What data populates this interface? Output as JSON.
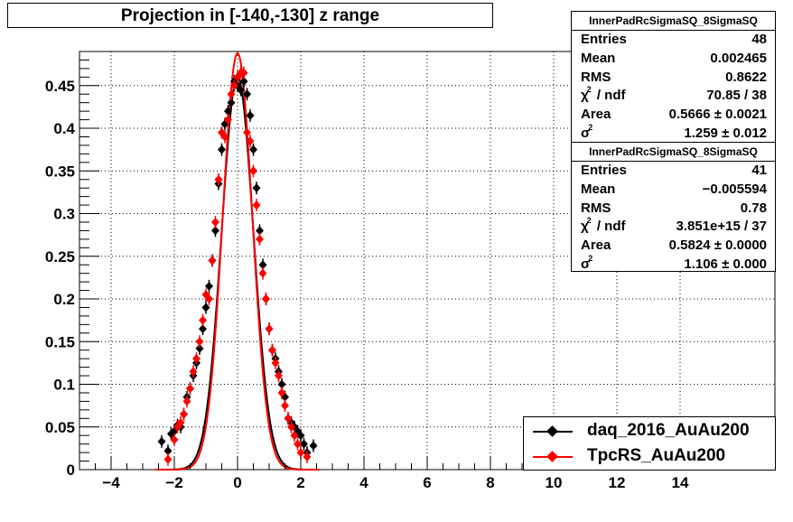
{
  "title": "Projection in [-140,-130] z range",
  "stats_boxes": [
    {
      "name": "InnerPadRcSigmaSQ_8SigmaSQ",
      "rows": [
        {
          "label": "Entries",
          "value": "48"
        },
        {
          "label": "Mean",
          "value": "0.002465"
        },
        {
          "label": "RMS",
          "value": "0.8622"
        },
        {
          "label": "χ / ndf",
          "sup": "2",
          "value": "70.85 / 38"
        },
        {
          "label": "Area",
          "value": "0.5666 ± 0.0021"
        },
        {
          "label": "σ",
          "sup": "2",
          "value": "1.259 ± 0.012"
        }
      ]
    },
    {
      "name": "InnerPadRcSigmaSQ_8SigmaSQ",
      "rows": [
        {
          "label": "Entries",
          "value": "41"
        },
        {
          "label": "Mean",
          "value": "−0.005594"
        },
        {
          "label": "RMS",
          "value": "0.78"
        },
        {
          "label": "χ / ndf",
          "sup": "2",
          "value": "3.851e+15 / 37"
        },
        {
          "label": "Area",
          "value": "0.5824 ± 0.0000"
        },
        {
          "label": "σ",
          "sup": "2",
          "value": "1.106 ± 0.000"
        }
      ]
    }
  ],
  "legend": [
    {
      "label": "daq_2016_AuAu200",
      "color": "#000000"
    },
    {
      "label": "TpcRS_AuAu200",
      "color": "#ff0000"
    }
  ],
  "chart_data": {
    "type": "scatter",
    "title": "Projection in [-140,-130] z range",
    "xlim": [
      -5,
      17
    ],
    "ylim": [
      0,
      0.49
    ],
    "x_ticks": [
      -4,
      -2,
      0,
      2,
      4,
      6,
      8,
      10,
      12,
      14
    ],
    "x_tick_labels": [
      "−4",
      "−2",
      "0",
      "2",
      "4",
      "6",
      "8",
      "10",
      "12",
      "14"
    ],
    "y_ticks": [
      0,
      0.05,
      0.1,
      0.15,
      0.2,
      0.25,
      0.3,
      0.35,
      0.4,
      0.45
    ],
    "y_tick_labels": [
      "0",
      "0.05",
      "0.1",
      "0.15",
      "0.2",
      "0.25",
      "0.3",
      "0.35",
      "0.4",
      "0.45"
    ],
    "grid": true,
    "legend_position": "bottom-right",
    "series": [
      {
        "name": "daq_2016_AuAu200",
        "color": "#000000",
        "x": [
          -2.4,
          -2.2,
          -2.1,
          -2.0,
          -1.9,
          -1.8,
          -1.7,
          -1.6,
          -1.5,
          -1.4,
          -1.3,
          -1.2,
          -1.1,
          -1.0,
          -0.9,
          -0.8,
          -0.7,
          -0.6,
          -0.5,
          -0.4,
          -0.3,
          -0.2,
          -0.1,
          0.0,
          0.1,
          0.2,
          0.3,
          0.4,
          0.5,
          0.6,
          0.7,
          0.8,
          0.9,
          1.0,
          1.1,
          1.2,
          1.3,
          1.4,
          1.5,
          1.6,
          1.7,
          1.8,
          1.9,
          2.0,
          2.1,
          2.2,
          2.4
        ],
        "y": [
          0.033,
          0.022,
          0.042,
          0.045,
          0.052,
          0.05,
          0.065,
          0.085,
          0.095,
          0.11,
          0.125,
          0.142,
          0.165,
          0.19,
          0.215,
          0.245,
          0.28,
          0.335,
          0.375,
          0.405,
          0.42,
          0.43,
          0.455,
          0.45,
          0.445,
          0.455,
          0.44,
          0.415,
          0.375,
          0.33,
          0.28,
          0.24,
          0.2,
          0.165,
          0.14,
          0.13,
          0.115,
          0.1,
          0.085,
          0.06,
          0.055,
          0.05,
          0.045,
          0.04,
          0.03,
          0.02,
          0.028
        ],
        "fit": {
          "mean": 0.0,
          "sigma2": 1.259,
          "peak": 0.46
        }
      },
      {
        "name": "TpcRS_AuAu200",
        "color": "#ff0000",
        "x": [
          -2.2,
          -2.0,
          -1.9,
          -1.8,
          -1.7,
          -1.6,
          -1.5,
          -1.4,
          -1.3,
          -1.2,
          -1.1,
          -1.0,
          -0.9,
          -0.8,
          -0.7,
          -0.6,
          -0.5,
          -0.4,
          -0.3,
          -0.2,
          -0.1,
          0.0,
          0.1,
          0.2,
          0.3,
          0.4,
          0.5,
          0.6,
          0.7,
          0.8,
          0.9,
          1.0,
          1.1,
          1.2,
          1.3,
          1.4,
          1.5,
          1.6,
          1.7,
          1.8,
          1.9,
          2.0,
          2.2
        ],
        "y": [
          0.012,
          0.035,
          0.05,
          0.055,
          0.065,
          0.08,
          0.095,
          0.115,
          0.13,
          0.15,
          0.175,
          0.205,
          0.2,
          0.245,
          0.29,
          0.34,
          0.395,
          0.39,
          0.41,
          0.44,
          0.45,
          0.46,
          0.465,
          0.465,
          0.395,
          0.385,
          0.35,
          0.31,
          0.27,
          0.23,
          0.2,
          0.165,
          0.14,
          0.125,
          0.11,
          0.09,
          0.075,
          0.06,
          0.05,
          0.04,
          0.03,
          0.02,
          0.015
        ],
        "fit": {
          "mean": 0.0,
          "sigma2": 1.106,
          "peak": 0.488
        }
      }
    ]
  }
}
